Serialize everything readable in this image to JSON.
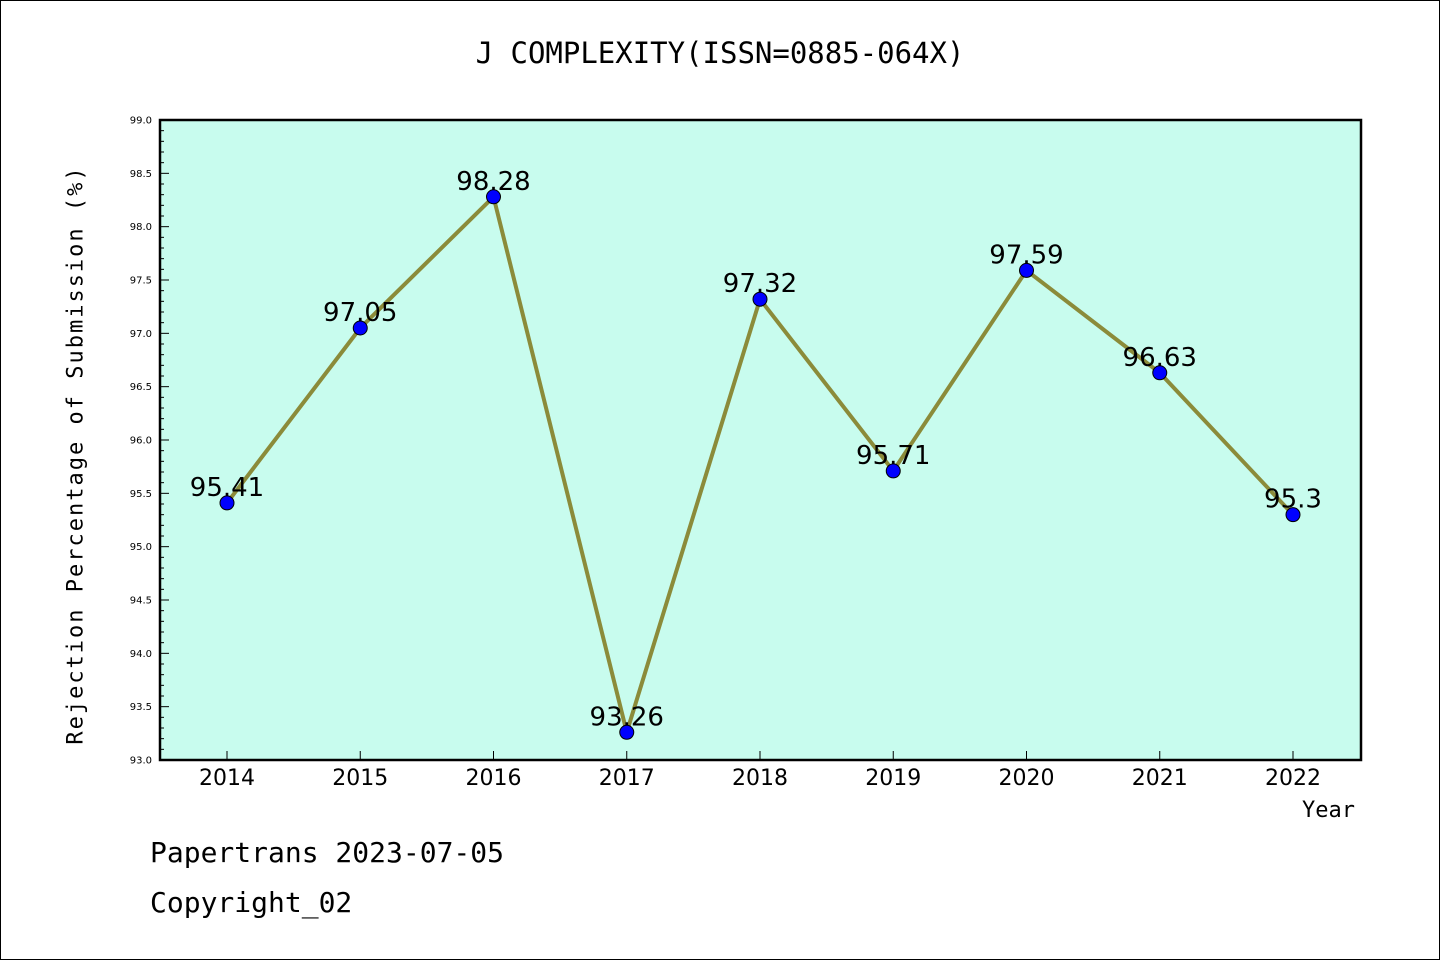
{
  "chart_data": {
    "type": "line",
    "title": "J COMPLEXITY(ISSN=0885-064X)",
    "xlabel": "Year",
    "ylabel": "Rejection Percentage of Submission (%)",
    "categories": [
      "2014",
      "2015",
      "2016",
      "2017",
      "2018",
      "2019",
      "2020",
      "2021",
      "2022"
    ],
    "series": [
      {
        "values": [
          95.41,
          97.05,
          98.28,
          93.26,
          97.32,
          95.71,
          97.59,
          96.63,
          95.3
        ]
      }
    ],
    "data_labels": [
      "95.41",
      "97.05",
      "98.28",
      "93.26",
      "97.32",
      "95.71",
      "97.59",
      "96.63",
      "95.3"
    ],
    "ylim": [
      93.0,
      99.0
    ],
    "yticks": [
      "93.0",
      "93.5",
      "94.0",
      "94.5",
      "95.0",
      "95.5",
      "96.0",
      "96.5",
      "97.0",
      "97.5",
      "98.0",
      "98.5",
      "99.0"
    ],
    "grid": false,
    "colors": {
      "plot_background": "#c8fcee",
      "line": "#8b8b3a",
      "marker": "#0000ff"
    }
  },
  "footer": {
    "line1": "Papertrans 2023-07-05",
    "line2": "Copyright_02"
  }
}
